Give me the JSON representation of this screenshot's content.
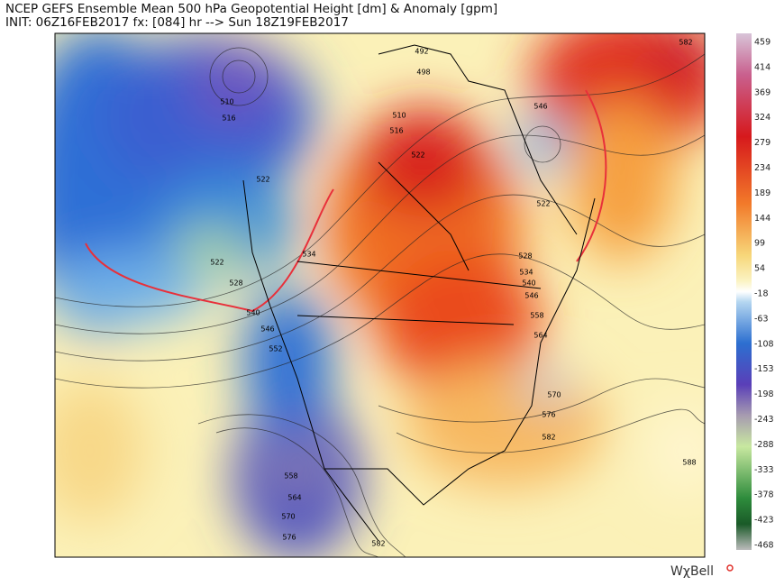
{
  "header": {
    "line1": "NCEP GEFS Ensemble Mean 500 hPa Geopotential Height [dm] & Anomaly [gpm]",
    "line2": "INIT: 06Z16FEB2017  fx: [084] hr --> Sun 18Z19FEB2017"
  },
  "colorbar": {
    "labels": [
      "459",
      "414",
      "369",
      "324",
      "279",
      "234",
      "189",
      "144",
      "99",
      "54",
      "-18",
      "-63",
      "-108",
      "-153",
      "-198",
      "-243",
      "-288",
      "-333",
      "-378",
      "-423",
      "-468"
    ]
  },
  "contour_labels": [
    "510",
    "516",
    "492",
    "498",
    "510",
    "516",
    "522",
    "522",
    "582",
    "546",
    "522",
    "522",
    "528",
    "534",
    "528",
    "534",
    "540",
    "546",
    "540",
    "546",
    "552",
    "558",
    "564",
    "570",
    "576",
    "582",
    "588",
    "558",
    "564",
    "570",
    "576",
    "582"
  ],
  "logo": "WχBell"
}
